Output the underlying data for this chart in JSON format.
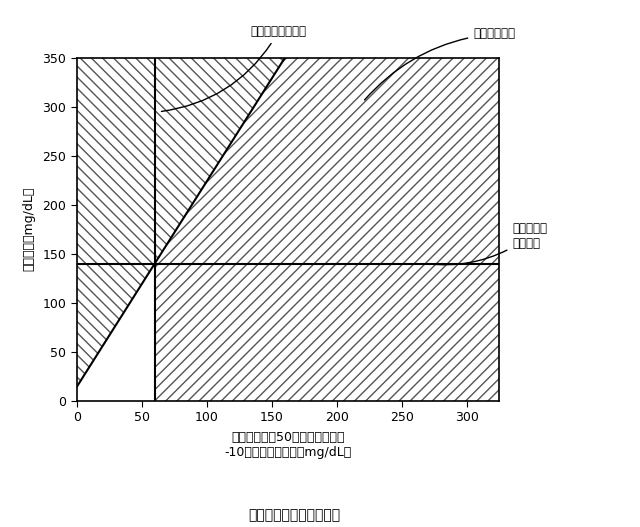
{
  "xlim": [
    0,
    325
  ],
  "ylim": [
    0,
    350
  ],
  "xticks": [
    0,
    50,
    100,
    150,
    200,
    250,
    300
  ],
  "yticks": [
    0,
    50,
    100,
    150,
    200,
    250,
    300,
    350
  ],
  "xlabel_line1": "低範囲変動、50パーセンタイル",
  "xlabel_line2": "-10パーセンタイル（mg/dL）",
  "ylabel": "メジアン（mg/dL）",
  "subtitle": "ゾーン定義の代替の設計",
  "vertical_line_x": 60,
  "horizontal_line_y": 140,
  "diagonal_slope": 2.1,
  "diagonal_intercept": 14,
  "annotation_margin": "治療可能マージン",
  "annotation_hypo": "低血糖リスク",
  "annotation_target": "ターゲット\nメジアン",
  "bg_color": "#ffffff",
  "line_color": "#000000",
  "hatch_color": "#555555"
}
